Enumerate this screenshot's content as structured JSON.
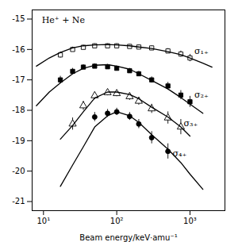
{
  "chart_data": {
    "type": "scatter",
    "xlabel": "Beam energy/keV·amu⁻¹",
    "log": "x",
    "grid": false,
    "xlim": [
      7,
      3000
    ],
    "xticks": [
      {
        "value": 10,
        "label": "10¹"
      },
      {
        "value": 100,
        "label": "10²"
      },
      {
        "value": 1000,
        "label": "10³"
      }
    ],
    "ylim": [
      -21.3,
      -14.7
    ],
    "yticks": [
      -21,
      -20,
      -19,
      -18,
      -17,
      -16,
      -15
    ],
    "series": [
      {
        "type": "scatter",
        "marker": "square-open",
        "color": "#000000",
        "x": [
          17,
          25,
          35,
          50,
          75,
          100,
          150,
          200,
          300,
          500,
          750,
          1000
        ],
        "values": [
          -16.18,
          -16.0,
          -15.93,
          -15.88,
          -15.88,
          -15.88,
          -15.9,
          -15.92,
          -15.95,
          -16.05,
          -16.15,
          -16.28
        ],
        "yerr": [
          0.1,
          0.08,
          0.07,
          0.07,
          0.07,
          0.07,
          0.07,
          0.07,
          0.07,
          0.08,
          0.1,
          0.12
        ]
      },
      {
        "type": "scatter",
        "marker": "square",
        "color": "#000000",
        "x": [
          17,
          25,
          35,
          50,
          75,
          100,
          150,
          200,
          300,
          500,
          750,
          1000
        ],
        "values": [
          -17.0,
          -16.72,
          -16.58,
          -16.55,
          -16.57,
          -16.62,
          -16.7,
          -16.8,
          -17.0,
          -17.2,
          -17.5,
          -17.72
        ],
        "yerr": [
          0.12,
          0.1,
          0.08,
          0.08,
          0.08,
          0.08,
          0.08,
          0.08,
          0.1,
          0.12,
          0.15,
          0.18
        ]
      },
      {
        "type": "scatter",
        "marker": "triangle-open",
        "color": "#000000",
        "x": [
          25,
          35,
          50,
          75,
          100,
          150,
          200,
          300,
          500,
          750
        ],
        "values": [
          -18.45,
          -17.85,
          -17.52,
          -17.42,
          -17.45,
          -17.55,
          -17.7,
          -17.95,
          -18.25,
          -18.55
        ],
        "yerr": [
          0.2,
          0.15,
          0.12,
          0.1,
          0.1,
          0.12,
          0.13,
          0.15,
          0.2,
          0.25
        ]
      },
      {
        "type": "scatter",
        "marker": "circle",
        "color": "#000000",
        "x": [
          50,
          75,
          100,
          150,
          200,
          300,
          500
        ],
        "values": [
          -18.22,
          -18.1,
          -18.05,
          -18.2,
          -18.45,
          -18.9,
          -19.35
        ],
        "yerr": [
          0.15,
          0.13,
          0.12,
          0.13,
          0.15,
          0.2,
          0.25
        ]
      },
      {
        "type": "line",
        "line_style": "solid",
        "color": "#000000",
        "x": [
          8,
          12,
          17,
          25,
          35,
          50,
          75,
          100,
          150,
          200,
          300,
          500,
          750,
          1000,
          1500,
          2000
        ],
        "values": [
          -16.55,
          -16.28,
          -16.1,
          -15.95,
          -15.88,
          -15.85,
          -15.84,
          -15.85,
          -15.88,
          -15.92,
          -15.97,
          -16.07,
          -16.17,
          -16.28,
          -16.45,
          -16.58
        ]
      },
      {
        "type": "line",
        "line_style": "solid",
        "color": "#000000",
        "x": [
          8,
          12,
          17,
          25,
          35,
          50,
          75,
          100,
          150,
          200,
          300,
          500,
          750,
          1000,
          1500
        ],
        "values": [
          -17.85,
          -17.4,
          -17.1,
          -16.8,
          -16.62,
          -16.52,
          -16.5,
          -16.55,
          -16.65,
          -16.8,
          -17.02,
          -17.3,
          -17.58,
          -17.8,
          -18.1
        ]
      },
      {
        "type": "line",
        "line_style": "solid",
        "color": "#000000",
        "x": [
          17,
          25,
          35,
          50,
          75,
          100,
          150,
          200,
          300,
          500,
          750,
          1000
        ],
        "values": [
          -18.95,
          -18.5,
          -18.05,
          -17.6,
          -17.4,
          -17.4,
          -17.48,
          -17.62,
          -17.9,
          -18.22,
          -18.55,
          -18.85
        ]
      },
      {
        "type": "line",
        "line_style": "solid",
        "color": "#000000",
        "x": [
          17,
          25,
          35,
          50,
          75,
          100,
          150,
          200,
          300,
          500,
          750,
          1000,
          1500
        ],
        "values": [
          -20.5,
          -19.8,
          -19.2,
          -18.55,
          -18.18,
          -18.05,
          -18.18,
          -18.4,
          -18.8,
          -19.28,
          -19.72,
          -20.1,
          -20.6
        ]
      }
    ],
    "annotations": [
      {
        "text": "σ₁₊",
        "x": 1150,
        "y": -16.05
      },
      {
        "text": "σ₂₊",
        "x": 1150,
        "y": -17.5
      },
      {
        "text": "σ₃₊",
        "x": 820,
        "y": -18.42
      },
      {
        "text": "σ₄₊",
        "x": 580,
        "y": -19.42
      },
      {
        "text": "He⁺ + Ne",
        "x": 9.5,
        "y": -15.05
      }
    ]
  }
}
